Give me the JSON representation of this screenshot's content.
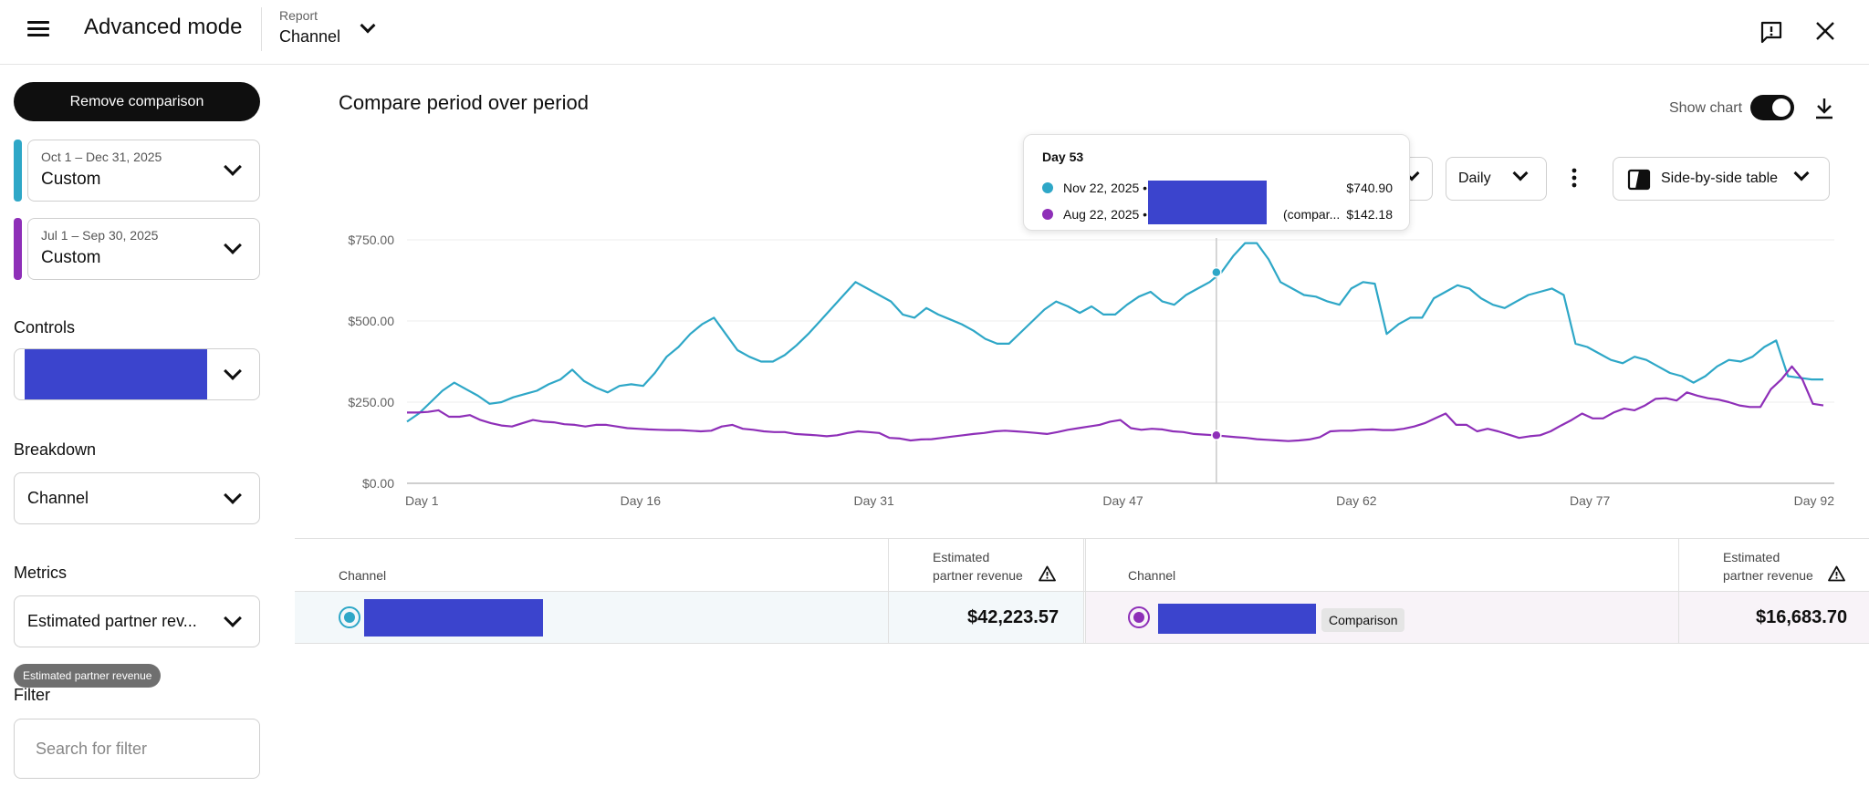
{
  "colors": {
    "primary": "#2ea7c7",
    "comparison": "#8e2fb8",
    "redaction": "#3b44cd"
  },
  "header": {
    "menu_icon": "hamburger-menu-icon",
    "title": "Advanced mode",
    "report_label": "Report",
    "report_value": "Channel",
    "feedback_icon": "feedback-icon",
    "close_icon": "close-icon"
  },
  "sidebar": {
    "remove_comparison": "Remove comparison",
    "periods": [
      {
        "range": "Oct 1 – Dec 31, 2025",
        "value": "Custom"
      },
      {
        "range": "Jul 1 – Sep 30, 2025",
        "value": "Custom"
      }
    ],
    "controls_label": "Controls",
    "breakdown_label": "Breakdown",
    "breakdown_value": "Channel",
    "metrics_label": "Metrics",
    "metrics_value": "Estimated partner rev...",
    "metrics_chip": "Estimated partner revenue",
    "filter_label": "Filter",
    "filter_placeholder": "Search for filter"
  },
  "main": {
    "title": "Compare period over period",
    "show_chart_label": "Show chart",
    "show_chart_on": true,
    "granularity": "Daily",
    "view": "Side-by-side table",
    "download_icon": "download-icon",
    "more_icon": "more-vert-icon"
  },
  "tooltip": {
    "title": "Day 53",
    "rows": [
      {
        "date": "Nov 22, 2025 •",
        "suffix": "",
        "value": "$740.90"
      },
      {
        "date": "Aug 22, 2025 •",
        "suffix": "(compar...",
        "value": "$142.18"
      }
    ]
  },
  "chart_data": {
    "type": "line",
    "x_tick_labels": [
      "Day 1",
      "Day 16",
      "Day 31",
      "Day 47",
      "Day 62",
      "Day 77",
      "Day 92"
    ],
    "y_tick_labels": [
      "$0.00",
      "$250.00",
      "$500.00",
      "$750.00"
    ],
    "ylim": [
      0,
      750
    ],
    "xlim": [
      1,
      92
    ],
    "highlight_day": 53,
    "series": [
      {
        "values": [
          190,
          215,
          250,
          285,
          310,
          290,
          270,
          245,
          250,
          265,
          275,
          285,
          305,
          320,
          350,
          315,
          295,
          280,
          300,
          305,
          300,
          340,
          390,
          420,
          460,
          490,
          510,
          460,
          410,
          390,
          375,
          375,
          395,
          425,
          460,
          500,
          540,
          580,
          620,
          600,
          580,
          560,
          520,
          510,
          540,
          520,
          505,
          490,
          470,
          445,
          430,
          430,
          465,
          500,
          535,
          560,
          545,
          525,
          545,
          520,
          520,
          550,
          575,
          590,
          560,
          550,
          580,
          600,
          620,
          650,
          700,
          740,
          740,
          690,
          620,
          600,
          580,
          575,
          560,
          550,
          600,
          620,
          615,
          460,
          490,
          510,
          510,
          570,
          590,
          610,
          600,
          570,
          550,
          540,
          560,
          580,
          590,
          600,
          580,
          430,
          420,
          400,
          380,
          370,
          390,
          380,
          360,
          340,
          330,
          310,
          330,
          360,
          380,
          375,
          390,
          420,
          440,
          330,
          325,
          320,
          320
        ]
      },
      {
        "values": [
          218,
          218,
          220,
          225,
          205,
          205,
          210,
          195,
          185,
          178,
          175,
          185,
          195,
          190,
          188,
          182,
          180,
          175,
          180,
          180,
          175,
          170,
          168,
          166,
          165,
          164,
          164,
          162,
          160,
          162,
          175,
          180,
          168,
          165,
          160,
          158,
          158,
          152,
          150,
          148,
          145,
          148,
          155,
          160,
          158,
          155,
          140,
          138,
          132,
          135,
          136,
          140,
          144,
          148,
          152,
          155,
          160,
          162,
          160,
          158,
          155,
          152,
          158,
          165,
          170,
          175,
          180,
          190,
          195,
          170,
          165,
          168,
          166,
          160,
          158,
          152,
          150,
          148,
          145,
          142,
          140,
          136,
          134,
          132,
          130,
          132,
          135,
          142,
          160,
          162,
          162,
          165,
          166,
          164,
          164,
          168,
          175,
          185,
          200,
          215,
          180,
          180,
          160,
          168,
          160,
          150,
          140,
          145,
          148,
          160,
          178,
          195,
          215,
          200,
          200,
          218,
          230,
          225,
          240,
          260,
          262,
          255,
          280,
          270,
          262,
          258,
          250,
          240,
          235,
          235,
          290,
          320,
          360,
          320,
          245,
          240
        ]
      }
    ]
  },
  "table": {
    "left": {
      "channel_header": "Channel",
      "metric_header_1": "Estimated",
      "metric_header_2": "partner revenue",
      "value": "$42,223.57"
    },
    "right": {
      "channel_header": "Channel",
      "metric_header_1": "Estimated",
      "metric_header_2": "partner revenue",
      "badge": "Comparison",
      "value": "$16,683.70"
    },
    "warning_icon": "warning-icon"
  }
}
